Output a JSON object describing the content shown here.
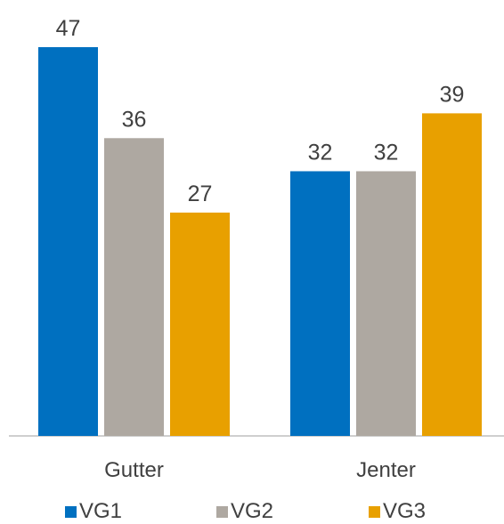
{
  "chart_data": {
    "type": "bar",
    "categories": [
      "Gutter",
      "Jenter"
    ],
    "series": [
      {
        "name": "VG1",
        "values": [
          47,
          32
        ],
        "color": "#0070c0"
      },
      {
        "name": "VG2",
        "values": [
          36,
          32
        ],
        "color": "#aea8a1"
      },
      {
        "name": "VG3",
        "values": [
          27,
          39
        ],
        "color": "#e8a000"
      }
    ],
    "ylim": [
      0,
      50
    ],
    "grid": false,
    "data_labels": true,
    "legend_position": "bottom",
    "title": "",
    "xlabel": "",
    "ylabel": ""
  },
  "colors": {
    "axis": "#bfbfbf",
    "label_text": "#404040"
  }
}
